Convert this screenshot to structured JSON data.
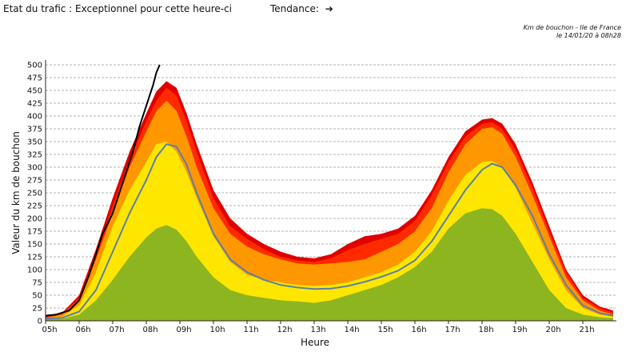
{
  "header": {
    "status_label": "Etat du trafic : Exceptionnel pour cette heure-ci",
    "trend_label": "Tendance:",
    "trend_icon": "arrow-right-icon",
    "trend_glyph": "➔"
  },
  "source": {
    "line1": "Km de bouchon - Ile de France",
    "line2": "le 14/01/20 à 08h28"
  },
  "chart_data": {
    "type": "area",
    "title": "",
    "xlabel": "Heure",
    "ylabel": "Valeur du  km de bouchon",
    "ylim": [
      0,
      500
    ],
    "yticks": [
      0,
      25,
      50,
      75,
      100,
      125,
      150,
      175,
      200,
      225,
      250,
      275,
      300,
      325,
      350,
      375,
      400,
      425,
      450,
      475,
      500
    ],
    "xlim": [
      5,
      22
    ],
    "xticks": [
      "05h",
      "06h",
      "07h",
      "08h",
      "09h",
      "10h",
      "11h",
      "12h",
      "13h",
      "14h",
      "15h",
      "16h",
      "17h",
      "18h",
      "19h",
      "20h",
      "21h"
    ],
    "grid": "horizontal-dashed",
    "x": [
      5.0,
      5.5,
      6.0,
      6.5,
      7.0,
      7.5,
      8.0,
      8.3,
      8.6,
      8.9,
      9.2,
      9.5,
      10.0,
      10.5,
      11.0,
      11.5,
      12.0,
      12.5,
      13.0,
      13.5,
      14.0,
      14.5,
      15.0,
      15.5,
      16.0,
      16.5,
      17.0,
      17.5,
      18.0,
      18.3,
      18.6,
      19.0,
      19.5,
      20.0,
      20.5,
      21.0,
      21.5,
      21.9
    ],
    "bands": [
      {
        "color": "#8db51f",
        "values": [
          3,
          4,
          12,
          40,
          80,
          125,
          163,
          180,
          187,
          178,
          155,
          125,
          85,
          60,
          50,
          45,
          40,
          38,
          35,
          40,
          50,
          60,
          70,
          85,
          105,
          135,
          180,
          210,
          220,
          218,
          205,
          170,
          115,
          60,
          25,
          12,
          7,
          5
        ]
      },
      {
        "color": "#ffe600",
        "values": [
          5,
          8,
          30,
          95,
          185,
          255,
          310,
          345,
          350,
          330,
          290,
          240,
          165,
          115,
          90,
          80,
          75,
          70,
          68,
          70,
          75,
          85,
          95,
          110,
          135,
          175,
          235,
          285,
          310,
          312,
          300,
          260,
          190,
          120,
          60,
          25,
          12,
          8
        ]
      },
      {
        "color": "#ff9800",
        "values": [
          6,
          12,
          40,
          120,
          210,
          300,
          370,
          410,
          430,
          410,
          360,
          300,
          220,
          170,
          145,
          130,
          120,
          112,
          110,
          112,
          115,
          120,
          135,
          150,
          175,
          220,
          290,
          345,
          375,
          378,
          365,
          320,
          245,
          165,
          85,
          40,
          20,
          12
        ]
      },
      {
        "color": "#ff2a00",
        "values": [
          7,
          14,
          45,
          130,
          225,
          315,
          390,
          430,
          455,
          440,
          390,
          330,
          240,
          185,
          160,
          140,
          125,
          118,
          115,
          122,
          138,
          150,
          160,
          170,
          195,
          245,
          310,
          360,
          385,
          388,
          375,
          335,
          260,
          175,
          95,
          45,
          25,
          16
        ]
      },
      {
        "color": "#e00000",
        "values": [
          9,
          16,
          50,
          140,
          240,
          330,
          405,
          448,
          468,
          455,
          405,
          345,
          255,
          200,
          170,
          150,
          135,
          125,
          122,
          130,
          150,
          165,
          170,
          180,
          205,
          255,
          320,
          370,
          393,
          396,
          385,
          345,
          270,
          185,
          100,
          50,
          28,
          20
        ]
      }
    ],
    "series": [
      {
        "color": "#5b7fa6",
        "x": [
          5.0,
          5.5,
          6.0,
          6.5,
          7.0,
          7.5,
          8.0,
          8.3,
          8.6,
          8.9,
          9.2,
          9.5,
          10.0,
          10.5,
          11.0,
          11.5,
          12.0,
          12.5,
          13.0,
          13.5,
          14.0,
          14.5,
          15.0,
          15.5,
          16.0,
          16.5,
          17.0,
          17.5,
          18.0,
          18.3,
          18.6,
          19.0,
          19.5,
          20.0,
          20.5,
          21.0,
          21.5,
          21.9
        ],
        "values": [
          4,
          6,
          18,
          60,
          135,
          210,
          275,
          320,
          345,
          340,
          305,
          250,
          170,
          120,
          95,
          80,
          70,
          65,
          62,
          63,
          68,
          76,
          86,
          98,
          118,
          155,
          205,
          255,
          295,
          307,
          300,
          265,
          205,
          130,
          70,
          30,
          15,
          10
        ]
      },
      {
        "color": "#000000",
        "x": [
          5.0,
          5.3,
          5.7,
          6.0,
          6.3,
          6.5,
          6.7,
          7.0,
          7.2,
          7.4,
          7.6,
          7.8,
          8.0,
          8.2,
          8.3,
          8.4
        ],
        "values": [
          10,
          12,
          20,
          40,
          90,
          130,
          170,
          210,
          250,
          290,
          330,
          380,
          420,
          460,
          485,
          500
        ]
      }
    ]
  }
}
